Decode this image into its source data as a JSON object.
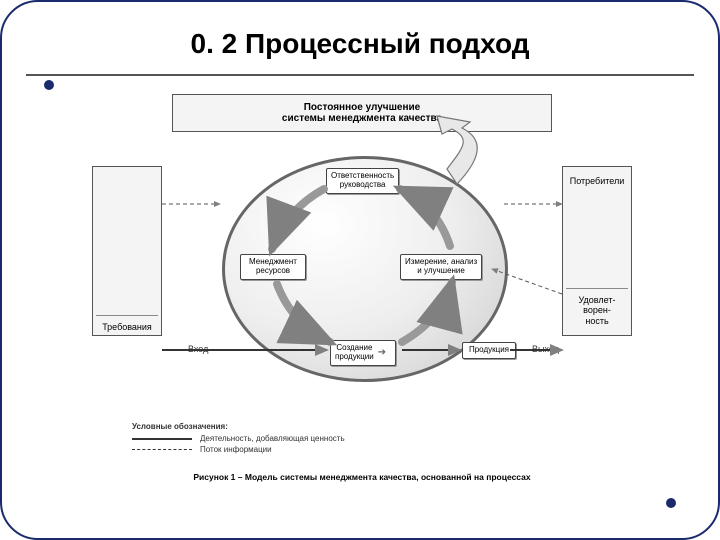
{
  "title": "0. 2 Процессный подход",
  "diagram": {
    "type": "flowchart",
    "banner": "Постоянное улучшение\nсистемы менеджмента качества",
    "left_box": {
      "top_label": "",
      "bottom_label": "Требования"
    },
    "right_box": {
      "top_label": "Потребители",
      "bottom_label": "Удовлет-\nворен-\nность"
    },
    "circle_nodes": {
      "top": "Ответственность\nруководства",
      "left": "Менеджмент\nресурсов",
      "right": "Измерение, анализ\nи улучшение",
      "bottom": "Создание\nпродукции"
    },
    "labels": {
      "input": "Вход",
      "output": "Выход",
      "product": "Продукция"
    },
    "colors": {
      "frame": "#1a2a6c",
      "box_fill": "#f4f4f4",
      "box_border": "#555555",
      "circle_border": "#666666",
      "node_fill": "#ffffff",
      "node_border": "#444444",
      "arrow": "#808080",
      "text": "#333333"
    },
    "font_sizes": {
      "title": 28,
      "banner": 10,
      "node": 8,
      "label": 9,
      "legend": 8,
      "caption": 8.5
    }
  },
  "legend": {
    "title": "Условные обозначения:",
    "solid": "Деятельность, добавляющая ценность",
    "dashed": "Поток информации"
  },
  "caption": "Рисунок 1 – Модель системы менеджмента качества, основанной на процессах"
}
